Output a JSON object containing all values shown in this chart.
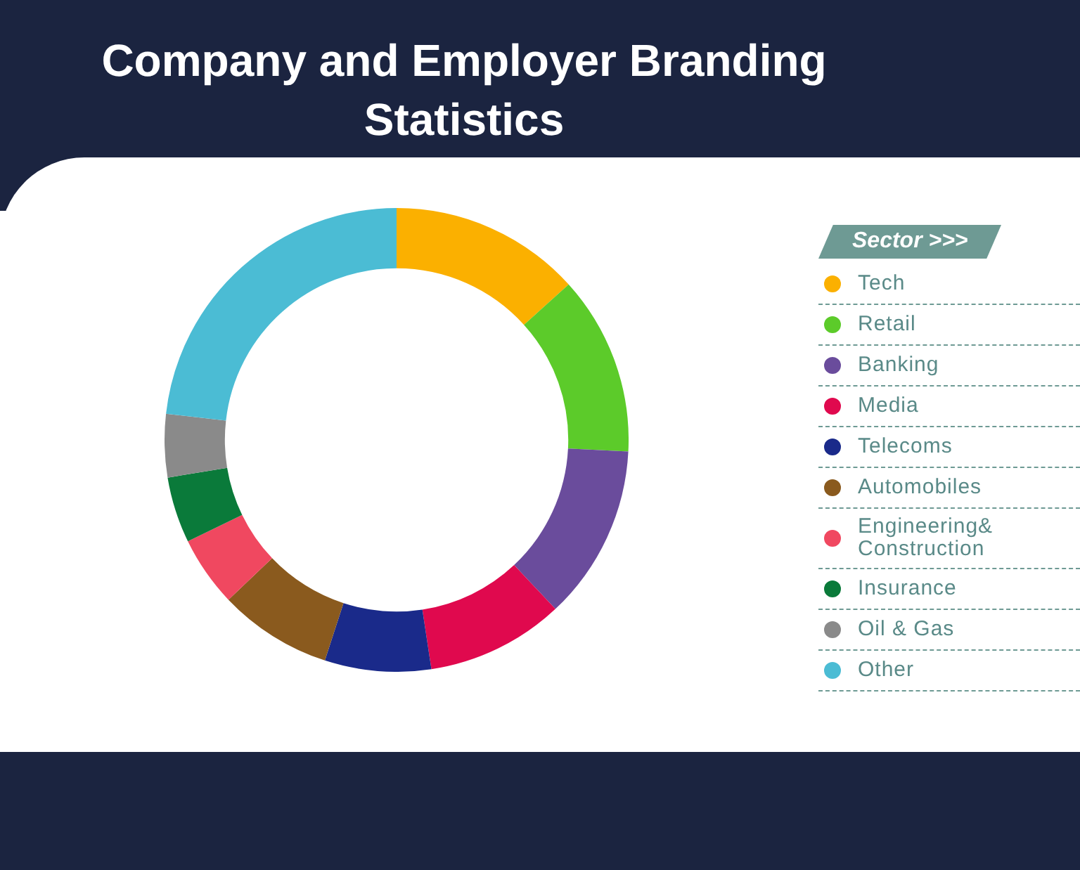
{
  "chart_data": {
    "type": "donut",
    "title": "Company and Employer Branding Statistics",
    "legend_title": "Sector >>>",
    "legend": "right",
    "categories": [
      "Tech",
      "Retail",
      "Banking",
      "Media",
      "Telecoms",
      "Automobiles",
      "Engineering& Construction",
      "Insurance",
      "Oil & Gas",
      "Other"
    ],
    "values": [
      13.3,
      12.5,
      12.2,
      9.6,
      7.4,
      7.9,
      4.9,
      4.6,
      4.4,
      23.2
    ],
    "colors": [
      "#fbb000",
      "#5ccb2a",
      "#6a4c9c",
      "#e0094e",
      "#1a2a8a",
      "#8a5a1e",
      "#f04860",
      "#0a7a3a",
      "#8a8a8a",
      "#4bbcd4"
    ]
  }
}
